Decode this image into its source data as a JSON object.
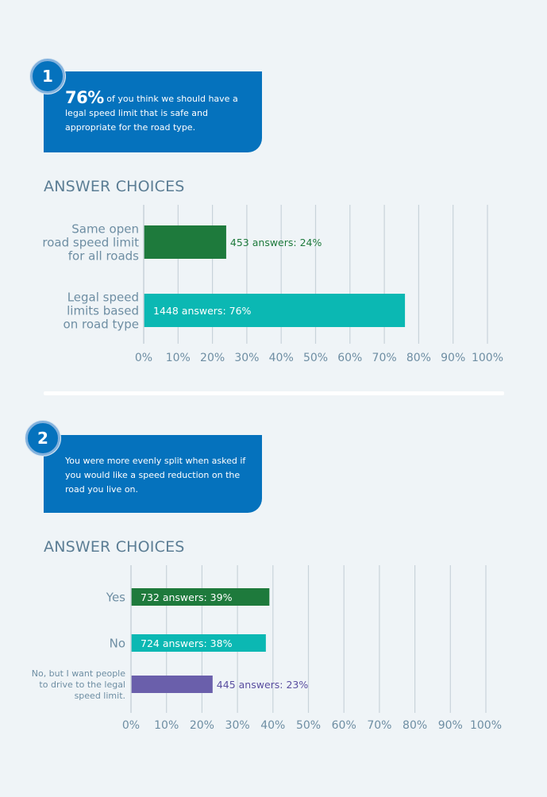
{
  "sections": [
    {
      "number": "1",
      "callout_highlight": "76%",
      "callout_text": "of you think we should have a legal speed limit that is safe and appropriate for the road type.",
      "heading": "ANSWER CHOICES"
    },
    {
      "number": "2",
      "callout_highlight": "",
      "callout_text": "You were more evenly split when asked if you would like a speed reduction on the road you live on.",
      "heading": "ANSWER CHOICES"
    }
  ],
  "chart_data": [
    {
      "type": "bar",
      "orientation": "horizontal",
      "categories": [
        [
          "Same open",
          "road speed limit",
          "for all roads"
        ],
        [
          "Legal speed",
          "limits based",
          "on road type"
        ]
      ],
      "values": [
        24,
        76
      ],
      "answers": [
        453,
        1448
      ],
      "data_labels": [
        "453 answers: 24%",
        "1448 answers: 76%"
      ],
      "colors": [
        "#1e7a3c",
        "#0bb8b3"
      ],
      "label_colors": [
        "#1e7a3c",
        "#ffffff"
      ],
      "label_inside": [
        false,
        true
      ],
      "xlim": [
        0,
        100
      ],
      "xticks": [
        "0%",
        "10%",
        "20%",
        "30%",
        "40%",
        "50%",
        "60%",
        "70%",
        "80%",
        "90%",
        "100%"
      ],
      "grid": true
    },
    {
      "type": "bar",
      "orientation": "horizontal",
      "categories": [
        [
          "Yes"
        ],
        [
          "No"
        ],
        [
          "No, but I want people",
          "to drive to the legal",
          "speed limit."
        ]
      ],
      "values": [
        39,
        38,
        23
      ],
      "answers": [
        732,
        724,
        445
      ],
      "data_labels": [
        "732 answers: 39%",
        "724 answers: 38%",
        "445 answers: 23%"
      ],
      "colors": [
        "#1e7a3c",
        "#0bb8b3",
        "#6a5fab"
      ],
      "label_colors": [
        "#ffffff",
        "#ffffff",
        "#5a4fa0"
      ],
      "label_inside": [
        true,
        true,
        false
      ],
      "xlim": [
        0,
        100
      ],
      "xticks": [
        "0%",
        "10%",
        "20%",
        "30%",
        "40%",
        "50%",
        "60%",
        "70%",
        "80%",
        "90%",
        "100%"
      ],
      "grid": true
    }
  ]
}
